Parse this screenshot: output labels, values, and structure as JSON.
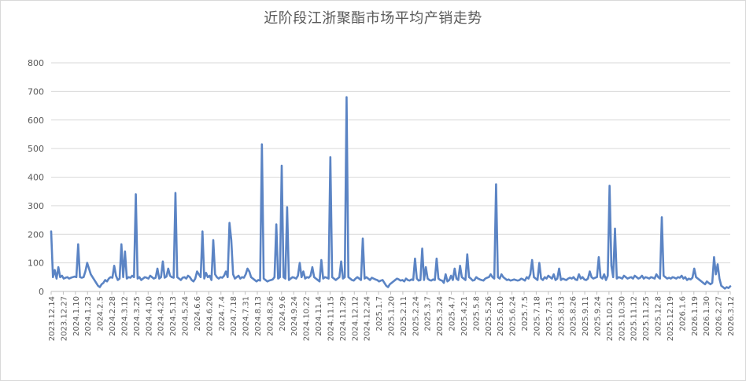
{
  "chart_data": {
    "type": "line",
    "title": "近阶段江浙聚酯市场平均产销走势",
    "xlabel": "",
    "ylabel": "",
    "ylim": [
      0,
      800
    ],
    "yticks": [
      0,
      100,
      200,
      300,
      400,
      500,
      600,
      700,
      800
    ],
    "grid": "horizontal",
    "legend": "none",
    "colors": {
      "line": "#5b84c4",
      "grid": "#d9d9d9",
      "text": "#595959"
    },
    "xtick_labels": [
      "2023.12.14",
      "2023.12.27",
      "2024.1.10",
      "2024.1.23",
      "2024.2.5",
      "2024.2.28",
      "2024.3.12",
      "2024.3.25",
      "2024.4.10",
      "2024.4.23",
      "2024.5.13",
      "2024.5.24",
      "2024.6.6",
      "2024.6.20",
      "2024.7.4",
      "2024.7.18",
      "2024.7.31",
      "2024.8.13",
      "2024.8.26",
      "2024.9.6",
      "2024.9.24",
      "2024.10.22",
      "2024.11.4",
      "2024.11.15",
      "2024.11.29",
      "2024.12.12",
      "2024.12.24",
      "2025.1.7",
      "2025.1.20",
      "2025.2.11",
      "2025.2.24",
      "2025.3.7",
      "2025.3.24",
      "2025.4.7",
      "2025.4.21",
      "2025.5.8",
      "2025.5.26",
      "2025.6.10",
      "2025.6.24",
      "2025.7.5",
      "2025.7.18",
      "2025.7.31",
      "2025.8.13",
      "2025.8.26",
      "2025.9.11",
      "2025.9.24",
      "2025.10.21",
      "2025.10.30",
      "2025.11.12",
      "2025.11.25",
      "2025.12.8",
      "2025.12.19",
      "2026.1.6",
      "2026.1.19",
      "2026.1.30",
      "2026.2.27",
      "2026.3.12"
    ],
    "series": [
      {
        "values": [
          210,
          50,
          75,
          45,
          85,
          50,
          55,
          45,
          48,
          50,
          45,
          48,
          50,
          52,
          50,
          165,
          50,
          48,
          50,
          70,
          100,
          80,
          60,
          50,
          40,
          30,
          20,
          15,
          25,
          30,
          40,
          35,
          45,
          50,
          48,
          90,
          55,
          40,
          45,
          165,
          50,
          140,
          45,
          50,
          48,
          55,
          50,
          340,
          45,
          50,
          40,
          45,
          50,
          48,
          45,
          55,
          50,
          45,
          48,
          80,
          45,
          50,
          105,
          48,
          52,
          80,
          55,
          50,
          48,
          345,
          50,
          45,
          40,
          48,
          50,
          45,
          55,
          50,
          40,
          35,
          45,
          70,
          60,
          50,
          210,
          45,
          65,
          50,
          55,
          40,
          180,
          60,
          50,
          45,
          50,
          48,
          55,
          70,
          50,
          240,
          180,
          60,
          45,
          50,
          55,
          45,
          50,
          48,
          60,
          80,
          70,
          50,
          45,
          40,
          35,
          40,
          38,
          515,
          45,
          40,
          35,
          38,
          40,
          42,
          50,
          235,
          45,
          50,
          440,
          50,
          45,
          295,
          40,
          45,
          50,
          48,
          45,
          55,
          100,
          50,
          70,
          45,
          50,
          48,
          55,
          85,
          50,
          45,
          40,
          35,
          110,
          45,
          50,
          48,
          45,
          470,
          50,
          45,
          40,
          45,
          50,
          105,
          45,
          50,
          680,
          50,
          45,
          40,
          38,
          45,
          50,
          45,
          40,
          185,
          45,
          50,
          45,
          40,
          48,
          45,
          42,
          40,
          35,
          38,
          40,
          30,
          20,
          15,
          25,
          30,
          35,
          40,
          45,
          42,
          38,
          40,
          35,
          45,
          40,
          38,
          42,
          40,
          115,
          45,
          38,
          40,
          150,
          40,
          85,
          45,
          40,
          38,
          42,
          40,
          115,
          45,
          40,
          38,
          30,
          60,
          35,
          40,
          55,
          40,
          80,
          45,
          40,
          90,
          50,
          45,
          40,
          130,
          50,
          45,
          38,
          40,
          50,
          45,
          42,
          40,
          38,
          45,
          48,
          50,
          60,
          50,
          45,
          375,
          50,
          45,
          60,
          50,
          45,
          40,
          42,
          38,
          40,
          42,
          40,
          38,
          40,
          45,
          42,
          38,
          50,
          45,
          60,
          110,
          50,
          45,
          40,
          100,
          45,
          40,
          50,
          45,
          55,
          50,
          45,
          60,
          40,
          45,
          80,
          40,
          45,
          42,
          40,
          45,
          48,
          45,
          50,
          42,
          40,
          60,
          45,
          50,
          42,
          40,
          45,
          70,
          50,
          45,
          48,
          50,
          120,
          50,
          45,
          60,
          40,
          55,
          370,
          90,
          50,
          220,
          45,
          50,
          48,
          45,
          55,
          50,
          45,
          48,
          50,
          45,
          55,
          50,
          45,
          48,
          55,
          45,
          50,
          48,
          45,
          50,
          48,
          45,
          60,
          50,
          45,
          260,
          55,
          50,
          45,
          48,
          45,
          50,
          48,
          45,
          50,
          48,
          55,
          45,
          50,
          40,
          45,
          42,
          48,
          80,
          50,
          45,
          40,
          35,
          30,
          25,
          35,
          30,
          25,
          30,
          120,
          60,
          95,
          45,
          20,
          15,
          10,
          15,
          12,
          18
        ]
      }
    ]
  }
}
